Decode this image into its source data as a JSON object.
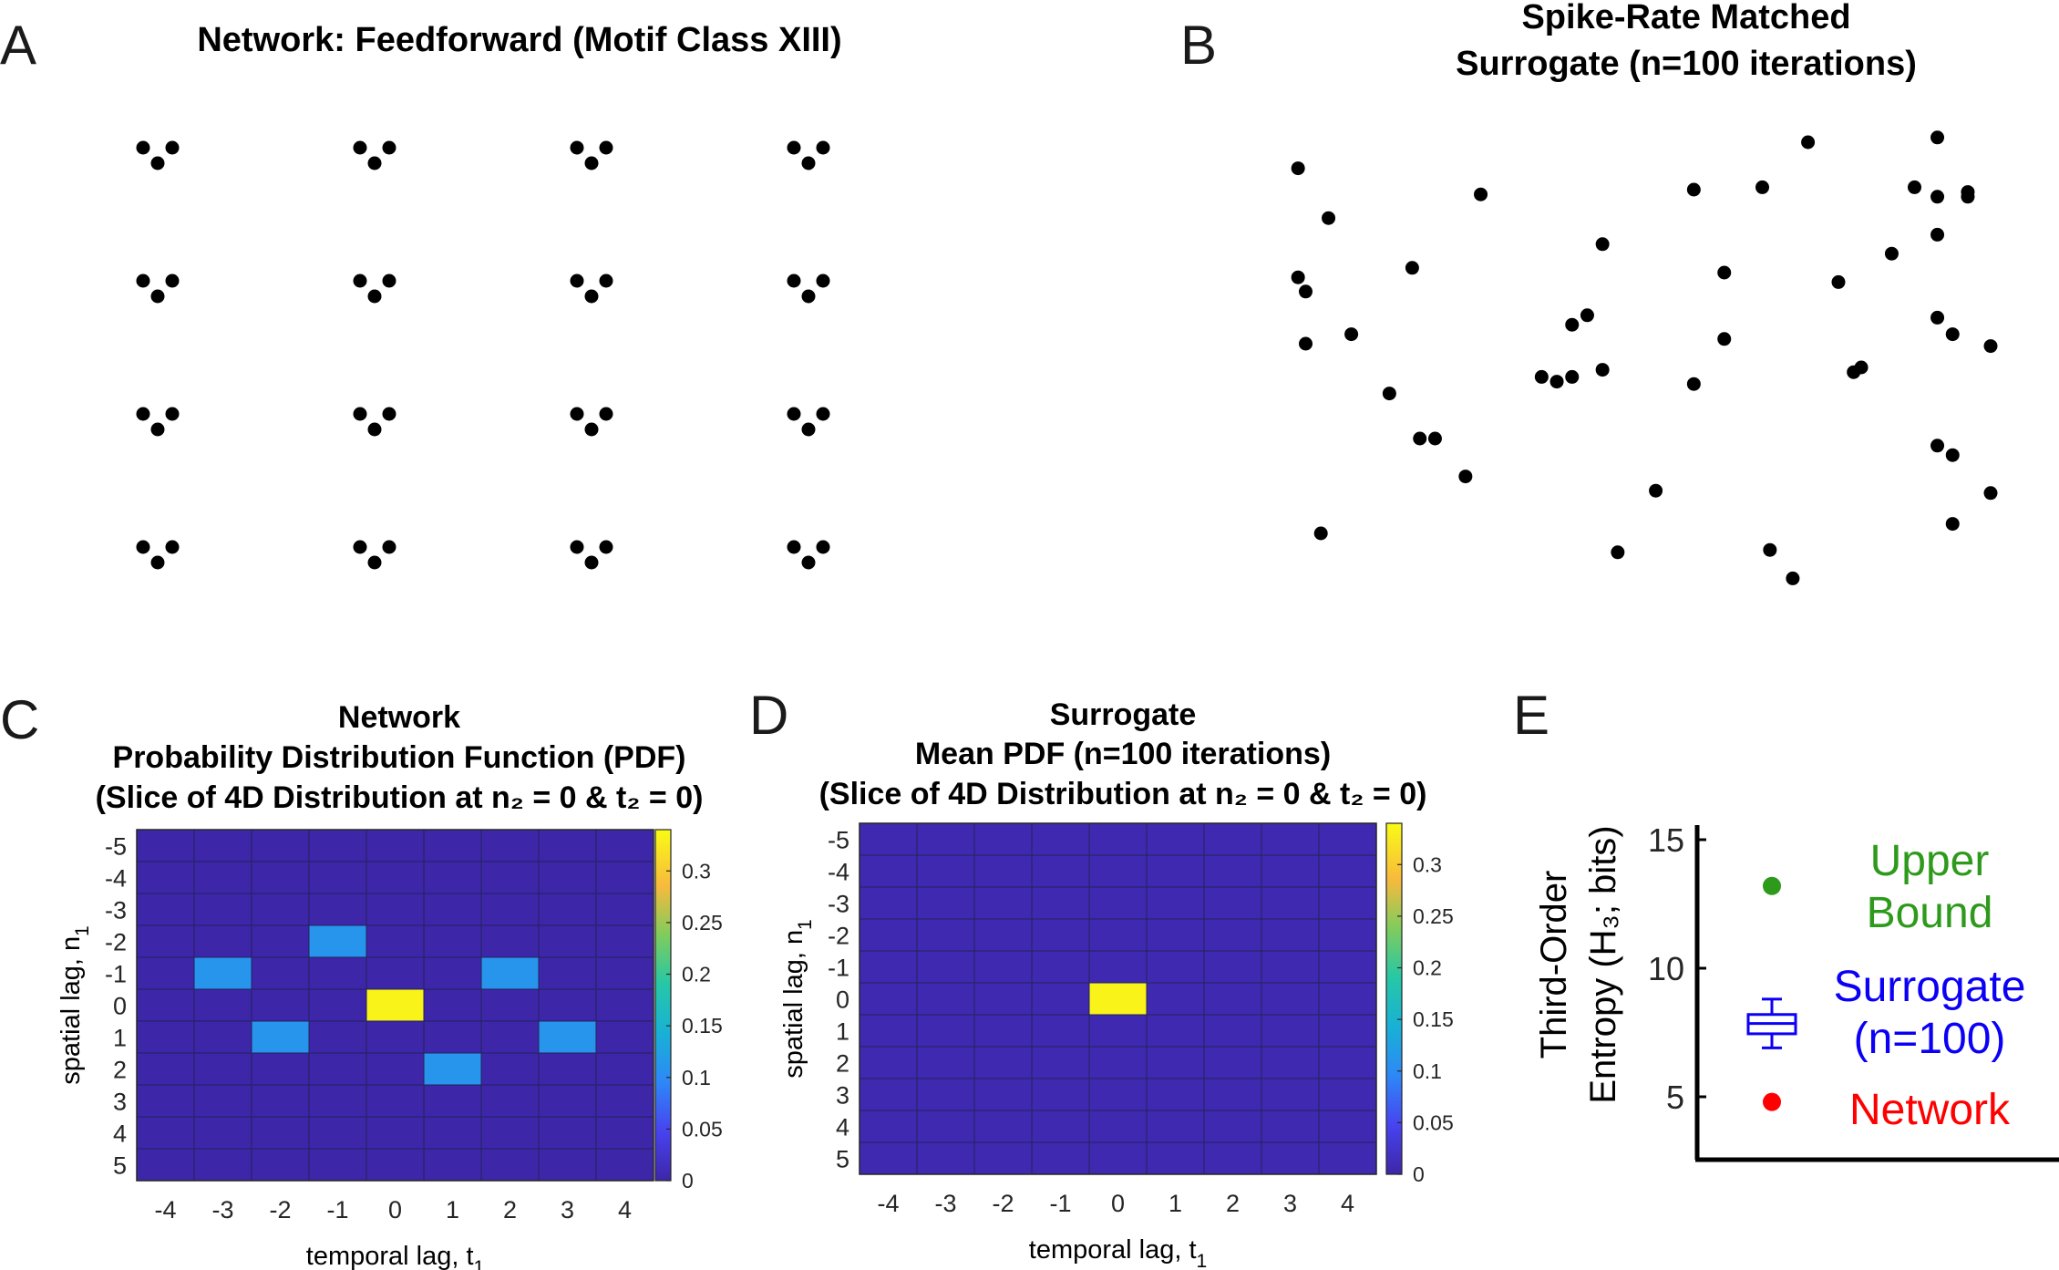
{
  "panels": {
    "A": {
      "letter": "A",
      "title": "Network: Feedforward (Motif Class XIII)"
    },
    "B": {
      "letter": "B",
      "title_line1": "Spike-Rate Matched",
      "title_line2": "Surrogate (n=100 iterations)"
    },
    "C": {
      "letter": "C",
      "title_line1": "Network",
      "title_line2": "Probability Distribution Function (PDF)",
      "title_line3": "(Slice of 4D Distribution at n₂ = 0 & t₂ = 0)"
    },
    "D": {
      "letter": "D",
      "title_line1": "Surrogate",
      "title_line2": "Mean PDF (n=100 iterations)",
      "title_line3": "(Slice of 4D Distribution at n₂ = 0 & t₂ = 0)"
    },
    "E": {
      "letter": "E"
    }
  },
  "chart_data": [
    {
      "panel": "A",
      "type": "scatter",
      "title": "Network: Feedforward (Motif Class XIII)",
      "description": "Raster of spikes: 4 x 4 grid of repeated 3-neuron feedforward motifs",
      "grid_rows": 4,
      "grid_cols": 4,
      "motif_points": [
        [
          0,
          0
        ],
        [
          1,
          1
        ],
        [
          2,
          0
        ]
      ]
    },
    {
      "panel": "B",
      "type": "scatter",
      "title": "Spike-Rate Matched Surrogate (n=100 iterations)",
      "points": [
        [
          0.09,
          0.08
        ],
        [
          0.13,
          0.185
        ],
        [
          0.09,
          0.31
        ],
        [
          0.1,
          0.34
        ],
        [
          0.1,
          0.45
        ],
        [
          0.16,
          0.43
        ],
        [
          0.21,
          0.555
        ],
        [
          0.25,
          0.65
        ],
        [
          0.27,
          0.65
        ],
        [
          0.12,
          0.85
        ],
        [
          0.24,
          0.29
        ],
        [
          0.31,
          0.73
        ],
        [
          0.33,
          0.135
        ],
        [
          0.41,
          0.52
        ],
        [
          0.43,
          0.53
        ],
        [
          0.45,
          0.52
        ],
        [
          0.45,
          0.41
        ],
        [
          0.47,
          0.39
        ],
        [
          0.49,
          0.24
        ],
        [
          0.49,
          0.505
        ],
        [
          0.51,
          0.89
        ],
        [
          0.56,
          0.76
        ],
        [
          0.61,
          0.125
        ],
        [
          0.61,
          0.535
        ],
        [
          0.65,
          0.3
        ],
        [
          0.65,
          0.44
        ],
        [
          0.7,
          0.12
        ],
        [
          0.71,
          0.885
        ],
        [
          0.76,
          0.025
        ],
        [
          0.74,
          0.945
        ],
        [
          0.8,
          0.32
        ],
        [
          0.82,
          0.51
        ],
        [
          0.83,
          0.5
        ],
        [
          0.87,
          0.26
        ],
        [
          0.9,
          0.12
        ],
        [
          0.93,
          0.015
        ],
        [
          0.93,
          0.14
        ],
        [
          0.93,
          0.22
        ],
        [
          0.97,
          0.13
        ],
        [
          0.97,
          0.14
        ],
        [
          0.93,
          0.395
        ],
        [
          0.95,
          0.43
        ],
        [
          1.0,
          0.455
        ],
        [
          0.93,
          0.665
        ],
        [
          0.95,
          0.685
        ],
        [
          1.0,
          0.765
        ],
        [
          0.95,
          0.83
        ]
      ]
    },
    {
      "panel": "C",
      "type": "heatmap",
      "title": "Network Probability Distribution Function (PDF) (Slice of 4D Distribution at n2 = 0 & t2 = 0)",
      "xlabel": "temporal lag, t1",
      "ylabel": "spatial lag, n1",
      "x": [
        -4,
        -3,
        -2,
        -1,
        0,
        1,
        2,
        3,
        4
      ],
      "y": [
        -5,
        -4,
        -3,
        -2,
        -1,
        0,
        1,
        2,
        3,
        4,
        5
      ],
      "colorbar_ticks": [
        "0",
        "0.05",
        "0.1",
        "0.15",
        "0.2",
        "0.25",
        "0.3"
      ],
      "clim": [
        0,
        0.34
      ],
      "cells": [
        {
          "t": 0,
          "n": 0,
          "value": 0.333
        },
        {
          "t": -1,
          "n": -2,
          "value": 0.111
        },
        {
          "t": -3,
          "n": -1,
          "value": 0.111
        },
        {
          "t": 2,
          "n": -1,
          "value": 0.111
        },
        {
          "t": -2,
          "n": 1,
          "value": 0.111
        },
        {
          "t": 3,
          "n": 1,
          "value": 0.111
        },
        {
          "t": 1,
          "n": 2,
          "value": 0.111
        }
      ],
      "background_value": 0
    },
    {
      "panel": "D",
      "type": "heatmap",
      "title": "Surrogate Mean PDF (n=100 iterations) (Slice of 4D Distribution at n2 = 0 & t2 = 0)",
      "xlabel": "temporal lag, t1",
      "ylabel": "spatial lag, n1",
      "x": [
        -4,
        -3,
        -2,
        -1,
        0,
        1,
        2,
        3,
        4
      ],
      "y": [
        -5,
        -4,
        -3,
        -2,
        -1,
        0,
        1,
        2,
        3,
        4,
        5
      ],
      "colorbar_ticks": [
        "0",
        "0.05",
        "0.1",
        "0.15",
        "0.2",
        "0.25",
        "0.3"
      ],
      "clim": [
        0,
        0.34
      ],
      "cells": [
        {
          "t": 0,
          "n": 0,
          "value": 0.333
        }
      ],
      "background_value": 0.005
    },
    {
      "panel": "E",
      "type": "scatter",
      "ylabel_line1": "Third-Order",
      "ylabel_line2": "Entropy (H₃; bits)",
      "yticks": [
        "5",
        "10",
        "15"
      ],
      "ylim": [
        2.5,
        15
      ],
      "series": [
        {
          "name": "Upper Bound",
          "value": 13.2,
          "color": "#2e9a1c"
        },
        {
          "name": "Surrogate (n=100)",
          "box": {
            "low": 6.9,
            "q1": 7.45,
            "median": 7.85,
            "q3": 8.2,
            "high": 8.8
          },
          "color": "#0b00f5"
        },
        {
          "name": "Network",
          "value": 4.8,
          "color": "#ff0000"
        }
      ],
      "legend_labels": {
        "upper_line1": "Upper",
        "upper_line2": "Bound",
        "surrogate_line1": "Surrogate",
        "surrogate_line2": "(n=100)",
        "network": "Network"
      }
    }
  ]
}
